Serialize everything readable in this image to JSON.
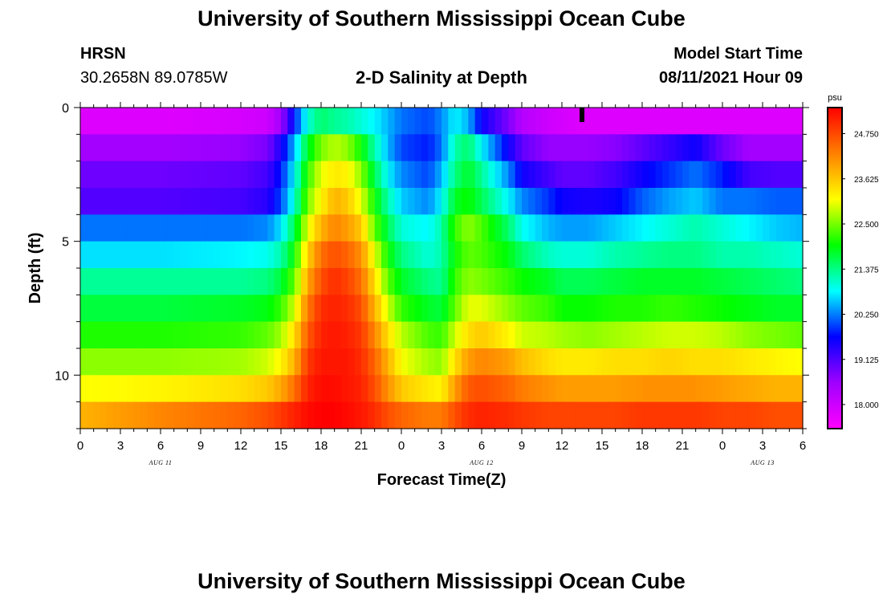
{
  "header": {
    "title": "University of Southern Mississippi Ocean Cube",
    "station": "HRSN",
    "coordinates": "30.2658N  89.0785W",
    "plot_title": "2-D Salinity at Depth",
    "model_start_label": "Model Start Time",
    "model_start_value": "08/11/2021 Hour 09"
  },
  "footer": {
    "title": "University of Southern Mississippi Ocean Cube"
  },
  "chart_data": {
    "type": "heatmap",
    "title": "2-D Salinity at Depth",
    "xlabel": "Forecast Time(Z)",
    "ylabel": "Depth (ft)",
    "x_tick_labels": [
      "0",
      "3",
      "6",
      "9",
      "12",
      "15",
      "18",
      "21",
      "0",
      "3",
      "6",
      "9",
      "12",
      "15",
      "18",
      "21",
      "0",
      "3",
      "6"
    ],
    "x_hours_range": [
      0,
      54
    ],
    "date_labels": [
      {
        "text": "AUG 11",
        "hour": 6
      },
      {
        "text": "AUG 12",
        "hour": 30
      },
      {
        "text": "AUG 13",
        "hour": 51
      }
    ],
    "y_tick_labels": [
      "0",
      "5",
      "10"
    ],
    "ylim_depth_ft": [
      0,
      12
    ],
    "colorbar": {
      "unit": "psu",
      "min": 17.4,
      "max": 25.4,
      "tick_labels": [
        "24.750",
        "23.625",
        "22.500",
        "21.375",
        "20.250",
        "19.125",
        "18.000"
      ],
      "colors": [
        "#ff00ff",
        "#a000ff",
        "#0000ff",
        "#00ffff",
        "#00ff00",
        "#ffff00",
        "#ff8000",
        "#ff0000"
      ]
    },
    "marker_hour": 37.5,
    "salinity_psu": {
      "hours": [
        0,
        6,
        12,
        14,
        15,
        16,
        17,
        18,
        19,
        20,
        21,
        22,
        23,
        24,
        26,
        27,
        28,
        29,
        30,
        32,
        33,
        35,
        36,
        38,
        40,
        42,
        44,
        46,
        48,
        50,
        52,
        54
      ],
      "rows": [
        {
          "depth": 0.5,
          "values": [
            17.8,
            17.8,
            17.9,
            18.0,
            18.5,
            19.8,
            21.0,
            21.5,
            21.3,
            21.2,
            21.0,
            20.8,
            20.5,
            20.2,
            20.0,
            20.3,
            20.8,
            20.5,
            19.6,
            18.8,
            18.3,
            18.0,
            17.9,
            17.8,
            17.8,
            17.8,
            17.8,
            17.8,
            17.8,
            17.8,
            17.8,
            17.8
          ]
        },
        {
          "depth": 1.5,
          "values": [
            18.5,
            18.5,
            18.6,
            18.8,
            19.5,
            20.5,
            21.8,
            22.5,
            22.8,
            22.6,
            22.0,
            21.2,
            20.5,
            20.0,
            19.8,
            20.2,
            21.2,
            21.5,
            20.8,
            19.6,
            19.0,
            18.6,
            18.6,
            18.6,
            18.7,
            19.0,
            19.3,
            19.6,
            18.9,
            18.5,
            18.5,
            18.5
          ]
        },
        {
          "depth": 2.5,
          "values": [
            18.9,
            18.9,
            19.0,
            19.2,
            19.8,
            20.8,
            22.2,
            23.0,
            23.3,
            23.2,
            22.6,
            21.6,
            20.8,
            20.3,
            20.0,
            20.5,
            21.4,
            21.8,
            21.3,
            20.3,
            19.6,
            19.2,
            19.0,
            19.0,
            19.2,
            19.6,
            19.9,
            20.2,
            19.8,
            19.2,
            19.1,
            19.1
          ]
        },
        {
          "depth": 3.5,
          "values": [
            19.1,
            19.1,
            19.2,
            19.4,
            20.0,
            21.0,
            22.5,
            23.2,
            23.8,
            23.6,
            23.0,
            22.0,
            21.2,
            20.6,
            20.3,
            20.8,
            21.8,
            22.0,
            21.6,
            20.8,
            20.3,
            19.9,
            19.6,
            19.5,
            19.6,
            20.1,
            20.4,
            20.6,
            20.2,
            20.2,
            20.1,
            20.1
          ]
        },
        {
          "depth": 4.5,
          "values": [
            20.2,
            20.2,
            20.2,
            20.3,
            20.7,
            21.6,
            23.0,
            23.8,
            24.2,
            24.0,
            23.6,
            22.4,
            21.6,
            21.0,
            20.8,
            21.2,
            22.2,
            22.6,
            22.3,
            21.5,
            20.9,
            20.5,
            20.4,
            20.4,
            20.6,
            20.8,
            21.0,
            21.2,
            21.0,
            20.8,
            20.6,
            20.5
          ]
        },
        {
          "depth": 5.5,
          "values": [
            20.7,
            20.7,
            20.8,
            20.9,
            21.2,
            22.0,
            23.5,
            24.4,
            24.7,
            24.5,
            24.1,
            23.0,
            22.0,
            21.4,
            21.0,
            21.2,
            22.0,
            22.4,
            22.3,
            21.9,
            21.5,
            21.1,
            21.0,
            21.0,
            21.2,
            21.3,
            21.4,
            21.4,
            21.2,
            21.2,
            21.1,
            21.0
          ]
        },
        {
          "depth": 6.5,
          "values": [
            21.3,
            21.3,
            21.3,
            21.4,
            21.7,
            22.4,
            23.9,
            24.7,
            25.0,
            24.8,
            24.4,
            23.4,
            22.4,
            21.8,
            21.4,
            21.3,
            22.2,
            22.6,
            22.5,
            22.2,
            22.0,
            21.8,
            21.6,
            21.6,
            21.7,
            21.8,
            21.8,
            21.8,
            21.7,
            21.6,
            21.5,
            21.4
          ]
        },
        {
          "depth": 7.5,
          "values": [
            21.7,
            21.7,
            21.8,
            21.9,
            22.2,
            22.9,
            24.3,
            25.0,
            25.1,
            25.0,
            24.7,
            23.8,
            22.9,
            22.2,
            21.8,
            21.7,
            22.4,
            23.0,
            23.0,
            22.6,
            22.4,
            22.2,
            22.0,
            22.0,
            22.1,
            22.1,
            22.2,
            22.1,
            22.0,
            21.9,
            21.8,
            21.8
          ]
        },
        {
          "depth": 8.5,
          "values": [
            22.1,
            22.1,
            22.2,
            22.4,
            22.7,
            23.4,
            24.6,
            25.1,
            25.2,
            25.1,
            24.9,
            24.2,
            23.4,
            22.8,
            22.3,
            22.2,
            22.9,
            23.4,
            23.6,
            23.2,
            22.9,
            22.8,
            22.7,
            22.6,
            22.7,
            22.8,
            22.9,
            22.9,
            22.8,
            22.6,
            22.5,
            22.4
          ]
        },
        {
          "depth": 9.5,
          "values": [
            22.6,
            22.6,
            22.7,
            22.9,
            23.2,
            23.8,
            24.9,
            25.2,
            25.2,
            25.2,
            25.0,
            24.5,
            23.8,
            23.1,
            22.7,
            22.6,
            23.4,
            24.0,
            24.2,
            24.0,
            23.7,
            23.4,
            23.3,
            23.3,
            23.4,
            23.4,
            23.5,
            23.4,
            23.4,
            23.3,
            23.2,
            23.1
          ]
        },
        {
          "depth": 10.5,
          "values": [
            23.1,
            23.2,
            23.4,
            23.6,
            23.9,
            24.4,
            25.1,
            25.3,
            25.3,
            25.2,
            25.1,
            24.7,
            24.1,
            23.6,
            23.3,
            23.2,
            24.0,
            24.6,
            24.7,
            24.5,
            24.3,
            24.1,
            24.0,
            24.0,
            24.0,
            24.1,
            24.1,
            24.1,
            24.0,
            23.9,
            23.8,
            23.8
          ]
        },
        {
          "depth": 11.5,
          "values": [
            23.8,
            24.2,
            24.5,
            24.7,
            24.9,
            25.1,
            25.3,
            25.4,
            25.4,
            25.3,
            25.2,
            25.0,
            24.7,
            24.5,
            24.3,
            24.3,
            24.7,
            25.0,
            25.1,
            25.0,
            24.9,
            24.8,
            24.8,
            24.8,
            24.8,
            24.9,
            24.9,
            24.9,
            24.8,
            24.8,
            24.7,
            24.7
          ]
        }
      ]
    }
  }
}
